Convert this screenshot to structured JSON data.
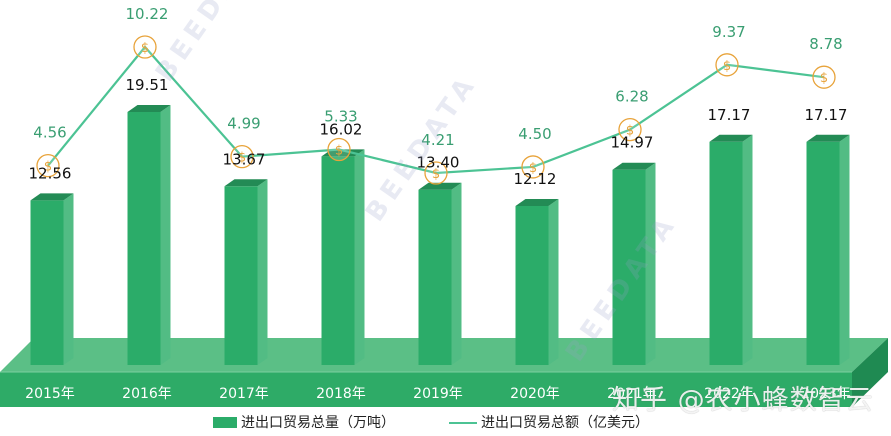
{
  "chart_data": {
    "type": "bar",
    "title": "",
    "xlabel": "",
    "ylabel": "",
    "categories": [
      "2015年",
      "2016年",
      "2017年",
      "2018年",
      "2019年",
      "2020年",
      "2021年",
      "2022年",
      "2023年"
    ],
    "series": [
      {
        "name": "进出口贸易总量（万吨）",
        "type": "bar",
        "color": "#2bac69",
        "values": [
          12.56,
          19.51,
          13.67,
          16.02,
          13.4,
          12.12,
          14.97,
          17.17,
          17.17
        ]
      },
      {
        "name": "进出口贸易总额（亿美元）",
        "type": "line",
        "color": "#4cc394",
        "marker": "dollar-circle",
        "values": [
          4.56,
          10.22,
          4.99,
          5.33,
          4.21,
          4.5,
          6.28,
          9.37,
          8.78
        ]
      }
    ],
    "grid": false,
    "legend_position": "bottom",
    "bar_labels": [
      "12.56",
      "19.51",
      "13.67",
      "16.02",
      "13.40",
      "12.12",
      "14.97",
      "17.17",
      "17.17"
    ],
    "line_labels": [
      "4.56",
      "10.22",
      "4.99",
      "5.33",
      "4.21",
      "4.50",
      "6.28",
      "9.37",
      "8.78"
    ]
  },
  "axis": {
    "years": [
      "2015年",
      "2016年",
      "2017年",
      "2018年",
      "2019年",
      "2020年",
      "2021年",
      "2022年",
      "2023年"
    ]
  },
  "legend": {
    "bar_label": "进出口贸易总量（万吨）",
    "line_label": "进出口贸易总额（亿美元）"
  },
  "watermarks": {
    "brand": "BEEDATA",
    "zhihu": "知乎 @农小蜂数智云"
  },
  "colors": {
    "bar_front": "#2bac69",
    "bar_side": "#52bc84",
    "bar_top": "#238b55",
    "platform_top": "#5bbf86",
    "platform_front": "#2eab67",
    "platform_side": "#1f8a52",
    "line": "#4cc394",
    "marker": "#e8a33a",
    "line_label": "#3a9e72"
  }
}
